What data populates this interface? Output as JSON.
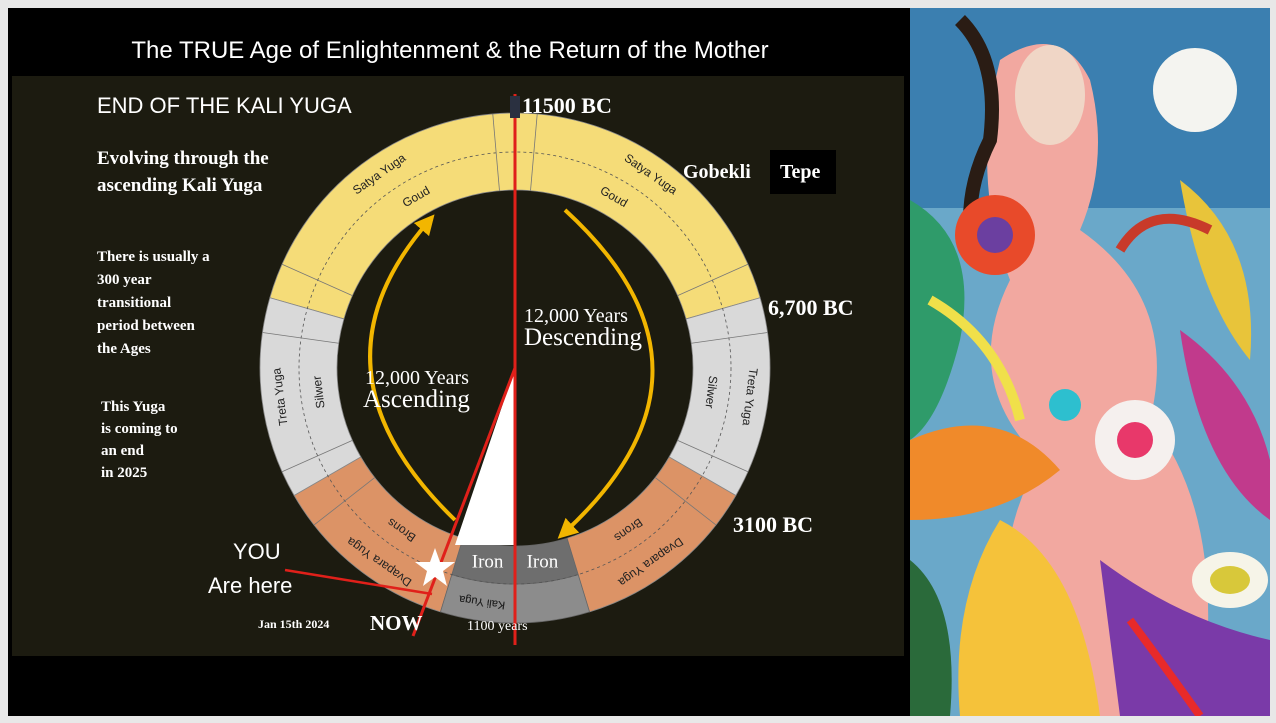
{
  "header": {
    "title": "The TRUE Age of Enlightenment & the Return of the Mother"
  },
  "left_notes": {
    "heading": "END OF THE KALI YUGA",
    "subheading": [
      "Evolving through the",
      "ascending Kali Yuga"
    ],
    "transition_note": [
      "There is usually a",
      "300 year",
      "transitional",
      "period between",
      "the Ages"
    ],
    "yuga_note": [
      "This Yuga",
      "is coming to",
      "an end",
      "in 2025"
    ]
  },
  "wheel": {
    "dates": {
      "top": "11500 BC",
      "upper_right": "6,700 BC",
      "lower_right": "3100 BC"
    },
    "site": [
      "Gobekli",
      "Tepe"
    ],
    "descending": [
      "12,000 Years",
      "Descending"
    ],
    "ascending": [
      "12,000 Years",
      "Ascending"
    ],
    "segments": {
      "satya": {
        "name": "Satya Yuga",
        "metal": "Goud"
      },
      "treta": {
        "name": "Treta Yuga",
        "metal": "Silwer"
      },
      "dvapara": {
        "name": "Dvapara Yuga",
        "metal": "Brons"
      },
      "kali": {
        "name": "Kali Yuga",
        "metal": "Iron"
      }
    }
  },
  "marker": {
    "you": "YOU",
    "are_here": "Are here",
    "date": "Jan 15th 2024",
    "now": "NOW",
    "duration": "1100 years"
  }
}
